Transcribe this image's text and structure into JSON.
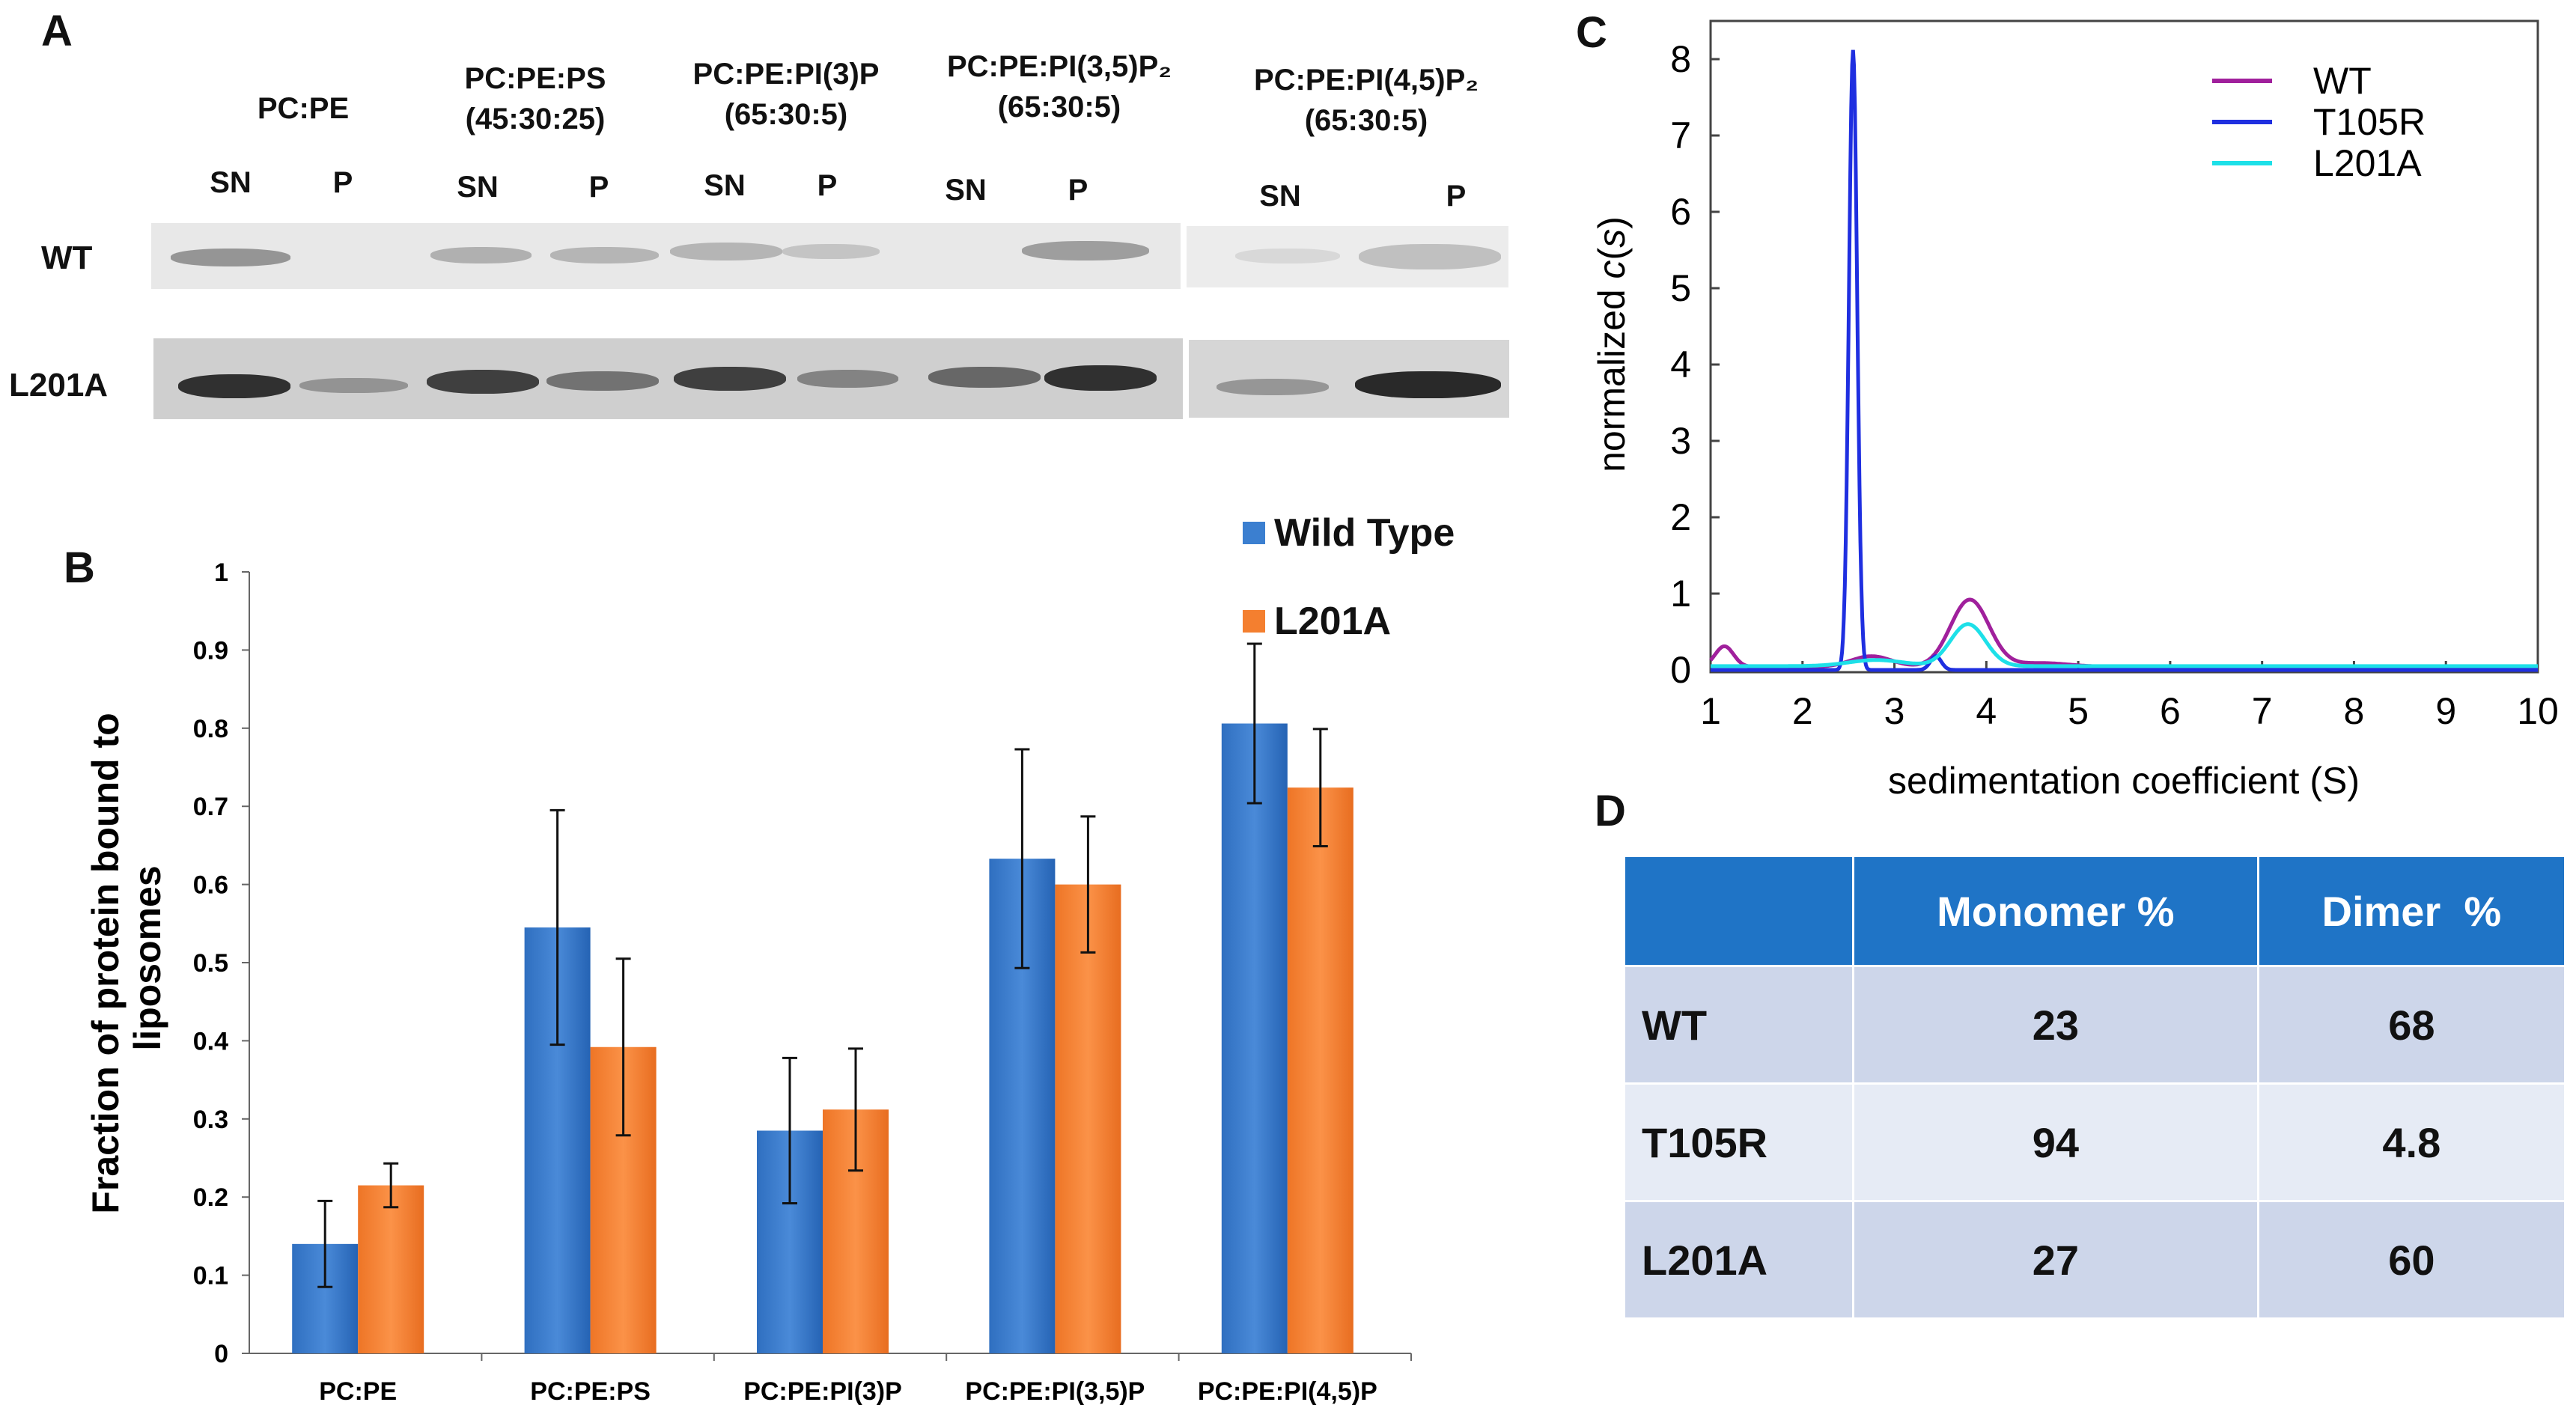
{
  "panel_labels": {
    "a": "A",
    "b": "B",
    "c": "C",
    "d": "D"
  },
  "gel": {
    "columns": [
      {
        "line1": "PC:PE",
        "line2": ""
      },
      {
        "line1": "PC:PE:PS",
        "line2": "(45:30:25)"
      },
      {
        "line1": "PC:PE:PI(3)P",
        "line2": "(65:30:5)"
      },
      {
        "line1": "PC:PE:PI(3,5)P₂",
        "line2": "(65:30:5)"
      },
      {
        "line1": "PC:PE:PI(4,5)P₂",
        "line2": "(65:30:5)"
      }
    ],
    "lane_sn": "SN",
    "lane_p": "P",
    "rows": [
      "WT",
      "L201A"
    ]
  },
  "chart_data": [
    {
      "type": "bar",
      "panel": "B",
      "categories": [
        "PC:PE",
        "PC:PE:PS",
        "PC:PE:PI(3)P",
        "PC:PE:PI(3,5)P",
        "PC:PE:PI(4,5)P"
      ],
      "series": [
        {
          "name": "Wild Type",
          "color": "#3b7fd0",
          "values": [
            0.14,
            0.545,
            0.285,
            0.633,
            0.806
          ],
          "errors": [
            0.055,
            0.15,
            0.093,
            0.14,
            0.102
          ]
        },
        {
          "name": "L201A",
          "color": "#f47f2f",
          "values": [
            0.215,
            0.392,
            0.312,
            0.6,
            0.724
          ],
          "errors": [
            0.028,
            0.113,
            0.078,
            0.087,
            0.075
          ]
        }
      ],
      "ylabel_line1": "Fraction of protein bound to",
      "ylabel_line2": "liposomes",
      "ylim": [
        0,
        1
      ],
      "yticks": [
        "0",
        "0.1",
        "0.2",
        "0.3",
        "0.4",
        "0.5",
        "0.6",
        "0.7",
        "0.8",
        "0.9",
        "1"
      ],
      "legend_position": "top-right"
    },
    {
      "type": "line",
      "panel": "C",
      "xlabel": "sedimentation coefficient (S)",
      "ylabel_pre": "normalized ",
      "ylabel_italic": "c",
      "ylabel_paren_open": "(",
      "ylabel_s": "s",
      "ylabel_paren_close": ")",
      "xlim": [
        1,
        10
      ],
      "ylim": [
        0,
        8.5
      ],
      "xticks": [
        "1",
        "2",
        "3",
        "4",
        "5",
        "6",
        "7",
        "8",
        "9",
        "10"
      ],
      "yticks": [
        "0",
        "1",
        "2",
        "3",
        "4",
        "5",
        "6",
        "7",
        "8"
      ],
      "legend_position": "top-right",
      "series": [
        {
          "name": "WT",
          "color": "#a0209c",
          "peaks": [
            [
              1.15,
              0.27,
              0.1
            ],
            [
              2.75,
              0.14,
              0.22
            ],
            [
              3.82,
              0.88,
              0.21
            ],
            [
              4.6,
              0.05,
              0.3
            ]
          ],
          "baseline": 0.04
        },
        {
          "name": "T105R",
          "color": "#1f2fe0",
          "peaks": [
            [
              2.55,
              8.12,
              0.045
            ],
            [
              3.45,
              0.18,
              0.06
            ]
          ],
          "baseline": 0.0
        },
        {
          "name": "L201A",
          "color": "#1de0e8",
          "peaks": [
            [
              3.8,
              0.55,
              0.19
            ],
            [
              2.8,
              0.08,
              0.3
            ]
          ],
          "baseline": 0.05
        }
      ]
    }
  ],
  "table": {
    "headers": [
      "",
      "Monomer %",
      "Dimer  %"
    ],
    "rows": [
      [
        "WT",
        "23",
        "68"
      ],
      [
        "T105R",
        "94",
        "4.8"
      ],
      [
        "L201A",
        "27",
        "60"
      ]
    ]
  }
}
